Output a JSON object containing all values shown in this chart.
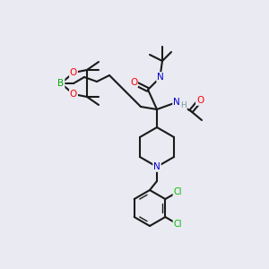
{
  "bg_color": "#eaeaf2",
  "bond_color": "#1a1a1a",
  "atom_colors": {
    "O": "#ff0000",
    "N": "#0000cd",
    "B": "#00aa00",
    "Cl": "#00bb00",
    "H": "#7a9a9a",
    "C": "#1a1a1a"
  }
}
